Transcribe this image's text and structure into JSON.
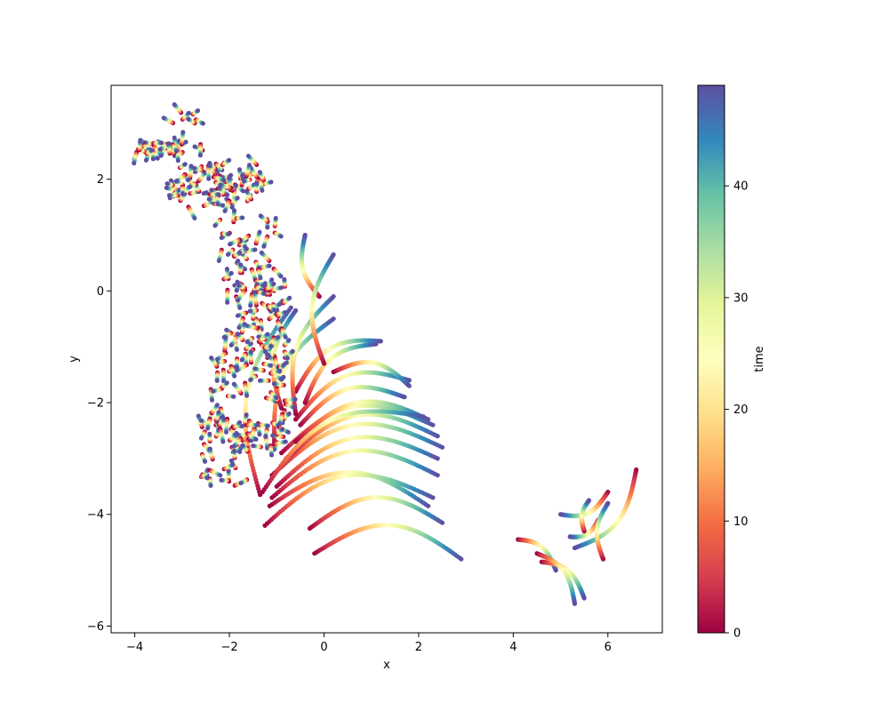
{
  "chart_data": {
    "type": "scatter",
    "title": "",
    "xlabel": "x",
    "ylabel": "y",
    "xlim": [
      -4.5,
      7.15
    ],
    "ylim": [
      -6.12,
      3.68
    ],
    "xticks": [
      -4,
      -2,
      0,
      2,
      4,
      6
    ],
    "xtick_labels": [
      "−4",
      "−2",
      "0",
      "2",
      "4",
      "6"
    ],
    "yticks": [
      -6,
      -4,
      -2,
      0,
      2
    ],
    "ytick_labels": [
      "−6",
      "−4",
      "−2",
      "0",
      "2"
    ],
    "grid": false,
    "colormap": "Spectral",
    "colorbar": {
      "label": "time",
      "range": [
        0,
        49
      ],
      "ticks": [
        0,
        10,
        20,
        30,
        40
      ],
      "tick_labels": [
        "0",
        "10",
        "20",
        "30",
        "40"
      ]
    },
    "colormap_stops": [
      "#9e0142",
      "#d53e4f",
      "#f46d43",
      "#fdae61",
      "#fee08b",
      "#ffffbf",
      "#e6f598",
      "#abdda4",
      "#66c2a5",
      "#3288bd",
      "#5e4fa2"
    ],
    "trajectories": [
      {
        "start": [
          -0.2,
          -4.7
        ],
        "end": [
          2.9,
          -4.8
        ]
      },
      {
        "start": [
          -0.3,
          -4.25
        ],
        "end": [
          2.5,
          -4.15
        ]
      },
      {
        "start": [
          -1.15,
          -3.85
        ],
        "end": [
          2.2,
          -3.85
        ]
      },
      {
        "start": [
          -1.25,
          -4.2
        ],
        "end": [
          2.3,
          -3.7
        ]
      },
      {
        "start": [
          -1.1,
          -3.7
        ],
        "end": [
          2.4,
          -3.3
        ]
      },
      {
        "start": [
          -1.0,
          -3.5
        ],
        "end": [
          2.4,
          -3.0
        ]
      },
      {
        "start": [
          -1.1,
          -3.3
        ],
        "end": [
          2.5,
          -2.8
        ]
      },
      {
        "start": [
          -0.8,
          -3.0
        ],
        "end": [
          2.4,
          -2.6
        ]
      },
      {
        "start": [
          -0.9,
          -2.9
        ],
        "end": [
          2.3,
          -2.4
        ]
      },
      {
        "start": [
          -0.6,
          -2.7
        ],
        "end": [
          2.2,
          -2.3
        ]
      },
      {
        "start": [
          -1.3,
          -3.6
        ],
        "end": [
          2.1,
          -2.25
        ]
      },
      {
        "start": [
          -0.5,
          -2.4
        ],
        "end": [
          1.7,
          -1.9
        ]
      },
      {
        "start": [
          -0.6,
          -2.3
        ],
        "end": [
          1.8,
          -1.6
        ]
      },
      {
        "start": [
          0.2,
          -1.45
        ],
        "end": [
          1.8,
          -1.7
        ]
      },
      {
        "start": [
          -0.4,
          -2.0
        ],
        "end": [
          1.1,
          -0.95
        ]
      },
      {
        "start": [
          -0.6,
          -1.8
        ],
        "end": [
          1.2,
          -0.9
        ]
      },
      {
        "start": [
          -1.05,
          -2.8
        ],
        "end": [
          0.2,
          -0.5
        ]
      },
      {
        "start": [
          -0.6,
          -2.2
        ],
        "end": [
          0.2,
          -0.1
        ]
      },
      {
        "start": [
          -0.9,
          -2.1
        ],
        "end": [
          -0.6,
          -0.35
        ]
      },
      {
        "start": [
          -0.1,
          -0.1
        ],
        "end": [
          -0.4,
          1.0
        ]
      },
      {
        "start": [
          0.0,
          -1.3
        ],
        "end": [
          0.2,
          0.65
        ]
      },
      {
        "start": [
          -1.35,
          -3.65
        ],
        "end": [
          -0.7,
          -0.3
        ]
      },
      {
        "start": [
          4.1,
          -4.45
        ],
        "end": [
          4.9,
          -5.0
        ]
      },
      {
        "start": [
          4.6,
          -4.85
        ],
        "end": [
          5.5,
          -5.5
        ]
      },
      {
        "start": [
          4.5,
          -4.7
        ],
        "end": [
          5.3,
          -5.6
        ]
      },
      {
        "start": [
          6.6,
          -3.2
        ],
        "end": [
          5.3,
          -4.6
        ]
      },
      {
        "start": [
          6.0,
          -3.6
        ],
        "end": [
          5.0,
          -4.0
        ]
      },
      {
        "start": [
          5.8,
          -4.1
        ],
        "end": [
          5.2,
          -4.4
        ]
      },
      {
        "start": [
          5.5,
          -4.3
        ],
        "end": [
          5.6,
          -3.75
        ]
      },
      {
        "start": [
          5.9,
          -4.8
        ],
        "end": [
          6.0,
          -3.8
        ]
      }
    ],
    "clusters": [
      {
        "x": [
          -4.0,
          -2.5
        ],
        "y": [
          2.45,
          2.65
        ],
        "count": 32
      },
      {
        "x": [
          -3.2,
          -1.2
        ],
        "y": [
          1.5,
          2.3
        ],
        "count": 70
      },
      {
        "x": [
          -2.2,
          -1.0
        ],
        "y": [
          0.0,
          1.3
        ],
        "count": 40
      },
      {
        "x": [
          -2.0,
          -0.8
        ],
        "y": [
          -1.2,
          0.1
        ],
        "count": 55
      },
      {
        "x": [
          -2.4,
          -0.8
        ],
        "y": [
          -2.8,
          -1.0
        ],
        "count": 70
      },
      {
        "x": [
          -2.6,
          -1.6
        ],
        "y": [
          -3.6,
          -2.2
        ],
        "count": 30
      },
      {
        "x": [
          -3.2,
          -2.7
        ],
        "y": [
          3.0,
          3.2
        ],
        "count": 6
      }
    ]
  }
}
